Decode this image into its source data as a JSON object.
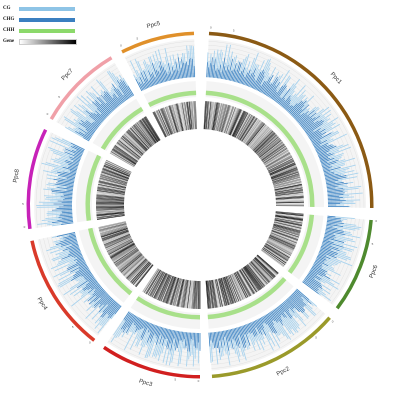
{
  "legend": [
    {
      "key": "cg",
      "label": "CG",
      "style": "solid",
      "color": "#8ec4e6"
    },
    {
      "key": "chg",
      "label": "CHG",
      "style": "solid",
      "color": "#3a7fc0"
    },
    {
      "key": "chh",
      "label": "CHH",
      "style": "solid",
      "color": "#8cd96b"
    },
    {
      "key": "gene",
      "label": "Gene",
      "style": "gradient",
      "color": "#000000"
    }
  ],
  "chromosomes": [
    {
      "name": "Ppc1",
      "color": "#8b5a14"
    },
    {
      "name": "Ppc6",
      "color": "#4e8a2e"
    },
    {
      "name": "Ppc2",
      "color": "#9a9a2a"
    },
    {
      "name": "Ppc3",
      "color": "#d11f1f"
    },
    {
      "name": "Ppc4",
      "color": "#d93a2a"
    },
    {
      "name": "Ppc8",
      "color": "#c722b8"
    },
    {
      "name": "Ppc7",
      "color": "#f0a0a8"
    },
    {
      "name": "Ppc5",
      "color": "#e0902a"
    }
  ],
  "tick_labels": [
    "0",
    "5"
  ]
}
